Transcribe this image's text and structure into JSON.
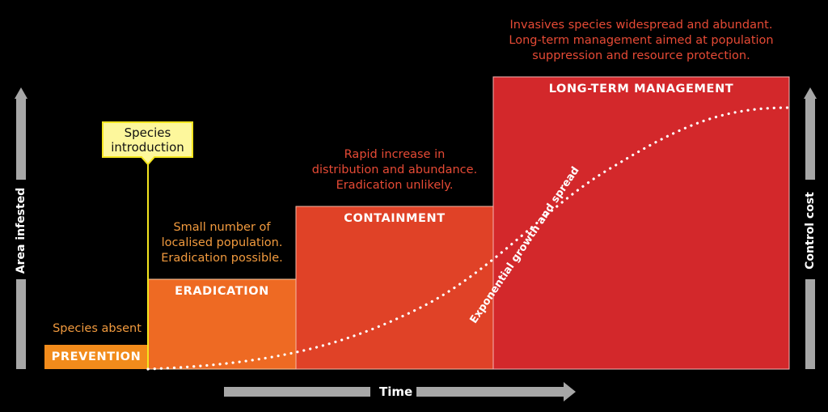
{
  "colors": {
    "background": "#000000",
    "prevention": "#f28b1b",
    "eradication": "#ee6a23",
    "containment": "#e04227",
    "long_term": "#d3282b",
    "annotation_orange": "#f19a3e",
    "annotation_red": "#e64a35",
    "axis_grey": "#a7a7a7",
    "callout_fill": "#fdf79c",
    "callout_line": "#f4e61f"
  },
  "axes": {
    "left_label": "Area infested",
    "right_label": "Control cost",
    "bottom_label": "Time"
  },
  "callout": {
    "text_line1": "Species",
    "text_line2": "introduction",
    "icon": "callout-flag"
  },
  "stages": [
    {
      "id": "prevention",
      "title": "PREVENTION",
      "level": 1,
      "note_lines": [
        "Species absent"
      ]
    },
    {
      "id": "eradication",
      "title": "ERADICATION",
      "level": 3,
      "note_lines": [
        "Small number of",
        "localised population.",
        "Eradication possible."
      ]
    },
    {
      "id": "containment",
      "title": "CONTAINMENT",
      "level": 5,
      "note_lines": [
        "Rapid increase in",
        "distribution and abundance.",
        "Eradication unlikely."
      ]
    },
    {
      "id": "long_term",
      "title": "LONG-TERM MANAGEMENT",
      "level": 8,
      "note_lines": [
        "Invasives species widespread and abundant.",
        "Long-term management aimed at population",
        "suppression and resource protection."
      ]
    }
  ],
  "curve": {
    "label": "Exponential growth and spread",
    "style": "dotted-s-curve"
  }
}
